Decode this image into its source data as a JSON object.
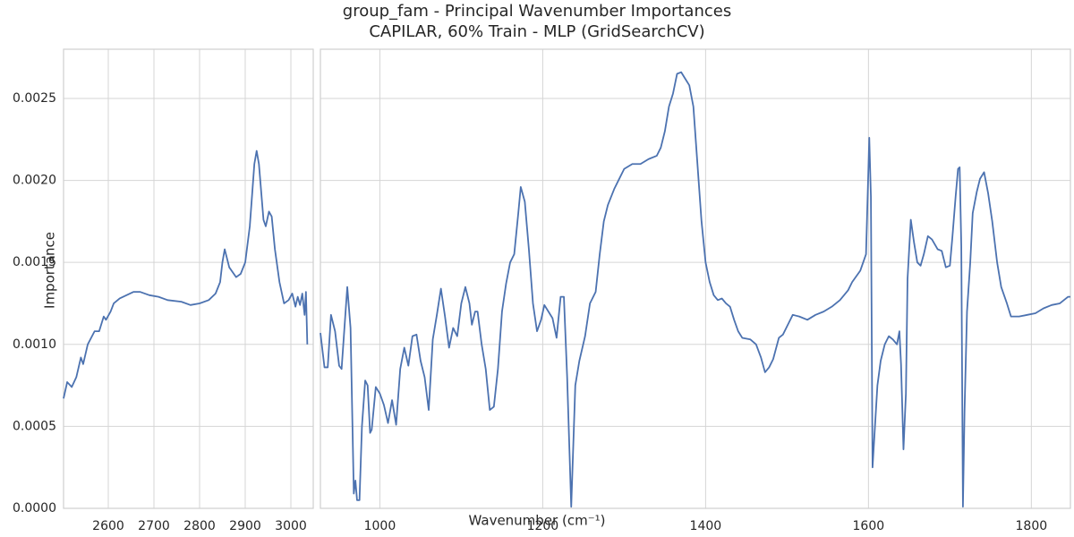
{
  "chart_data": [
    {
      "type": "line",
      "title": "group_fam - Principal Wavenumber Importances",
      "subtitle": "CAPILAR, 60% Train - MLP (GridSearchCV)",
      "ylabel": "Importance",
      "xlabel": "Wavenumber (cm⁻¹)",
      "color": "#4c72b0",
      "grid": true,
      "xlim": [
        2502,
        3049
      ],
      "ylim": [
        0,
        0.0028
      ],
      "xticks": [
        2600,
        2700,
        2800,
        2900,
        3000
      ],
      "yticks": [
        {
          "value": 0,
          "label": "0.0000"
        },
        0.0005,
        {
          "value": 0.001,
          "label": "0.0010"
        },
        0.0015,
        {
          "value": 0.002,
          "label": "0.0020"
        },
        0.0025
      ],
      "x": [
        2502,
        2510,
        2520,
        2530,
        2540,
        2545,
        2555,
        2570,
        2580,
        2590,
        2595,
        2605,
        2612,
        2625,
        2640,
        2655,
        2670,
        2690,
        2710,
        2730,
        2760,
        2780,
        2800,
        2820,
        2835,
        2845,
        2850,
        2855,
        2865,
        2880,
        2890,
        2900,
        2910,
        2920,
        2925,
        2930,
        2940,
        2945,
        2952,
        2958,
        2965,
        2975,
        2985,
        2995,
        3003,
        3010,
        3015,
        3020,
        3025,
        3030,
        3033,
        3036
      ],
      "values": [
        0.00067,
        0.00077,
        0.00074,
        0.0008,
        0.00092,
        0.00088,
        0.001,
        0.00108,
        0.00108,
        0.00117,
        0.00115,
        0.0012,
        0.00125,
        0.00128,
        0.0013,
        0.00132,
        0.00132,
        0.0013,
        0.00129,
        0.00127,
        0.00126,
        0.00124,
        0.00125,
        0.00127,
        0.00131,
        0.00138,
        0.0015,
        0.00158,
        0.00147,
        0.00141,
        0.00143,
        0.0015,
        0.00172,
        0.0021,
        0.00218,
        0.0021,
        0.00176,
        0.00172,
        0.00181,
        0.00178,
        0.00158,
        0.00138,
        0.00125,
        0.00127,
        0.00131,
        0.00123,
        0.00129,
        0.00124,
        0.00131,
        0.00118,
        0.00132,
        0.001
      ]
    },
    {
      "type": "line",
      "color": "#4c72b0",
      "grid": true,
      "xlim": [
        927,
        1848
      ],
      "ylim": [
        0,
        0.0028
      ],
      "xticks": [
        1000,
        1200,
        1400,
        1600,
        1800
      ],
      "x": [
        927,
        932,
        936,
        940,
        945,
        950,
        953,
        960,
        964,
        968,
        970,
        972,
        975,
        978,
        982,
        985,
        988,
        990,
        995,
        1000,
        1005,
        1010,
        1015,
        1020,
        1025,
        1030,
        1035,
        1040,
        1045,
        1050,
        1055,
        1060,
        1065,
        1070,
        1075,
        1080,
        1085,
        1090,
        1095,
        1100,
        1105,
        1110,
        1113,
        1117,
        1120,
        1125,
        1130,
        1135,
        1140,
        1145,
        1150,
        1155,
        1160,
        1165,
        1170,
        1173,
        1178,
        1183,
        1188,
        1193,
        1198,
        1202,
        1207,
        1212,
        1217,
        1222,
        1226,
        1230,
        1235,
        1240,
        1245,
        1252,
        1258,
        1265,
        1270,
        1275,
        1280,
        1288,
        1293,
        1300,
        1310,
        1320,
        1330,
        1340,
        1345,
        1350,
        1355,
        1360,
        1365,
        1370,
        1375,
        1380,
        1385,
        1390,
        1395,
        1400,
        1405,
        1410,
        1415,
        1420,
        1425,
        1430,
        1435,
        1440,
        1445,
        1455,
        1462,
        1468,
        1473,
        1478,
        1483,
        1490,
        1495,
        1502,
        1507,
        1515,
        1525,
        1535,
        1545,
        1555,
        1565,
        1575,
        1580,
        1590,
        1597,
        1601,
        1603,
        1605,
        1608,
        1611,
        1615,
        1620,
        1625,
        1630,
        1635,
        1638,
        1640,
        1643,
        1646,
        1648,
        1652,
        1656,
        1660,
        1664,
        1668,
        1673,
        1678,
        1685,
        1690,
        1695,
        1700,
        1703,
        1707,
        1710,
        1712,
        1714,
        1716,
        1718,
        1721,
        1725,
        1728,
        1733,
        1737,
        1742,
        1747,
        1752,
        1758,
        1763,
        1770,
        1775,
        1785,
        1795,
        1805,
        1815,
        1825,
        1835,
        1845,
        1848
      ],
      "values": [
        0.00107,
        0.00086,
        0.00086,
        0.00118,
        0.00108,
        0.00087,
        0.00085,
        0.00135,
        0.0011,
        9e-05,
        0.00017,
        5e-05,
        5e-05,
        0.0005,
        0.00078,
        0.00075,
        0.00046,
        0.00048,
        0.00074,
        0.0007,
        0.00063,
        0.00052,
        0.00066,
        0.00051,
        0.00085,
        0.00098,
        0.00087,
        0.00105,
        0.00106,
        0.0009,
        0.0008,
        0.0006,
        0.00103,
        0.00118,
        0.00134,
        0.00117,
        0.00098,
        0.0011,
        0.00105,
        0.00125,
        0.00135,
        0.00125,
        0.00112,
        0.0012,
        0.0012,
        0.001,
        0.00085,
        0.0006,
        0.00062,
        0.00085,
        0.0012,
        0.00137,
        0.0015,
        0.00155,
        0.0018,
        0.00196,
        0.00187,
        0.00158,
        0.00125,
        0.00108,
        0.00115,
        0.00124,
        0.0012,
        0.00116,
        0.00104,
        0.00129,
        0.00129,
        0.0008,
        1e-05,
        0.00075,
        0.0009,
        0.00105,
        0.00125,
        0.00132,
        0.00155,
        0.00175,
        0.00185,
        0.00195,
        0.002,
        0.00207,
        0.0021,
        0.0021,
        0.00213,
        0.00215,
        0.0022,
        0.0023,
        0.00245,
        0.00253,
        0.00265,
        0.00266,
        0.00262,
        0.00258,
        0.00245,
        0.0021,
        0.00175,
        0.0015,
        0.00138,
        0.0013,
        0.00127,
        0.00128,
        0.00125,
        0.00123,
        0.00115,
        0.00108,
        0.00104,
        0.00103,
        0.001,
        0.00092,
        0.00083,
        0.00086,
        0.00091,
        0.00104,
        0.00106,
        0.00113,
        0.00118,
        0.00117,
        0.00115,
        0.00118,
        0.0012,
        0.00123,
        0.00127,
        0.00133,
        0.00138,
        0.00145,
        0.00155,
        0.00226,
        0.0019,
        0.00025,
        0.0005,
        0.00075,
        0.0009,
        0.001,
        0.00105,
        0.00103,
        0.001,
        0.00108,
        0.00088,
        0.00036,
        0.0007,
        0.0014,
        0.00176,
        0.00162,
        0.0015,
        0.00148,
        0.00155,
        0.00166,
        0.00164,
        0.00158,
        0.00157,
        0.00147,
        0.00148,
        0.00165,
        0.0019,
        0.00207,
        0.00208,
        0.0016,
        1e-05,
        0.0006,
        0.0012,
        0.0015,
        0.0018,
        0.00193,
        0.00201,
        0.00205,
        0.00192,
        0.00175,
        0.0015,
        0.00135,
        0.00125,
        0.00117,
        0.00117,
        0.00118,
        0.00119,
        0.00122,
        0.00124,
        0.00125,
        0.00129,
        0.00129
      ]
    }
  ]
}
